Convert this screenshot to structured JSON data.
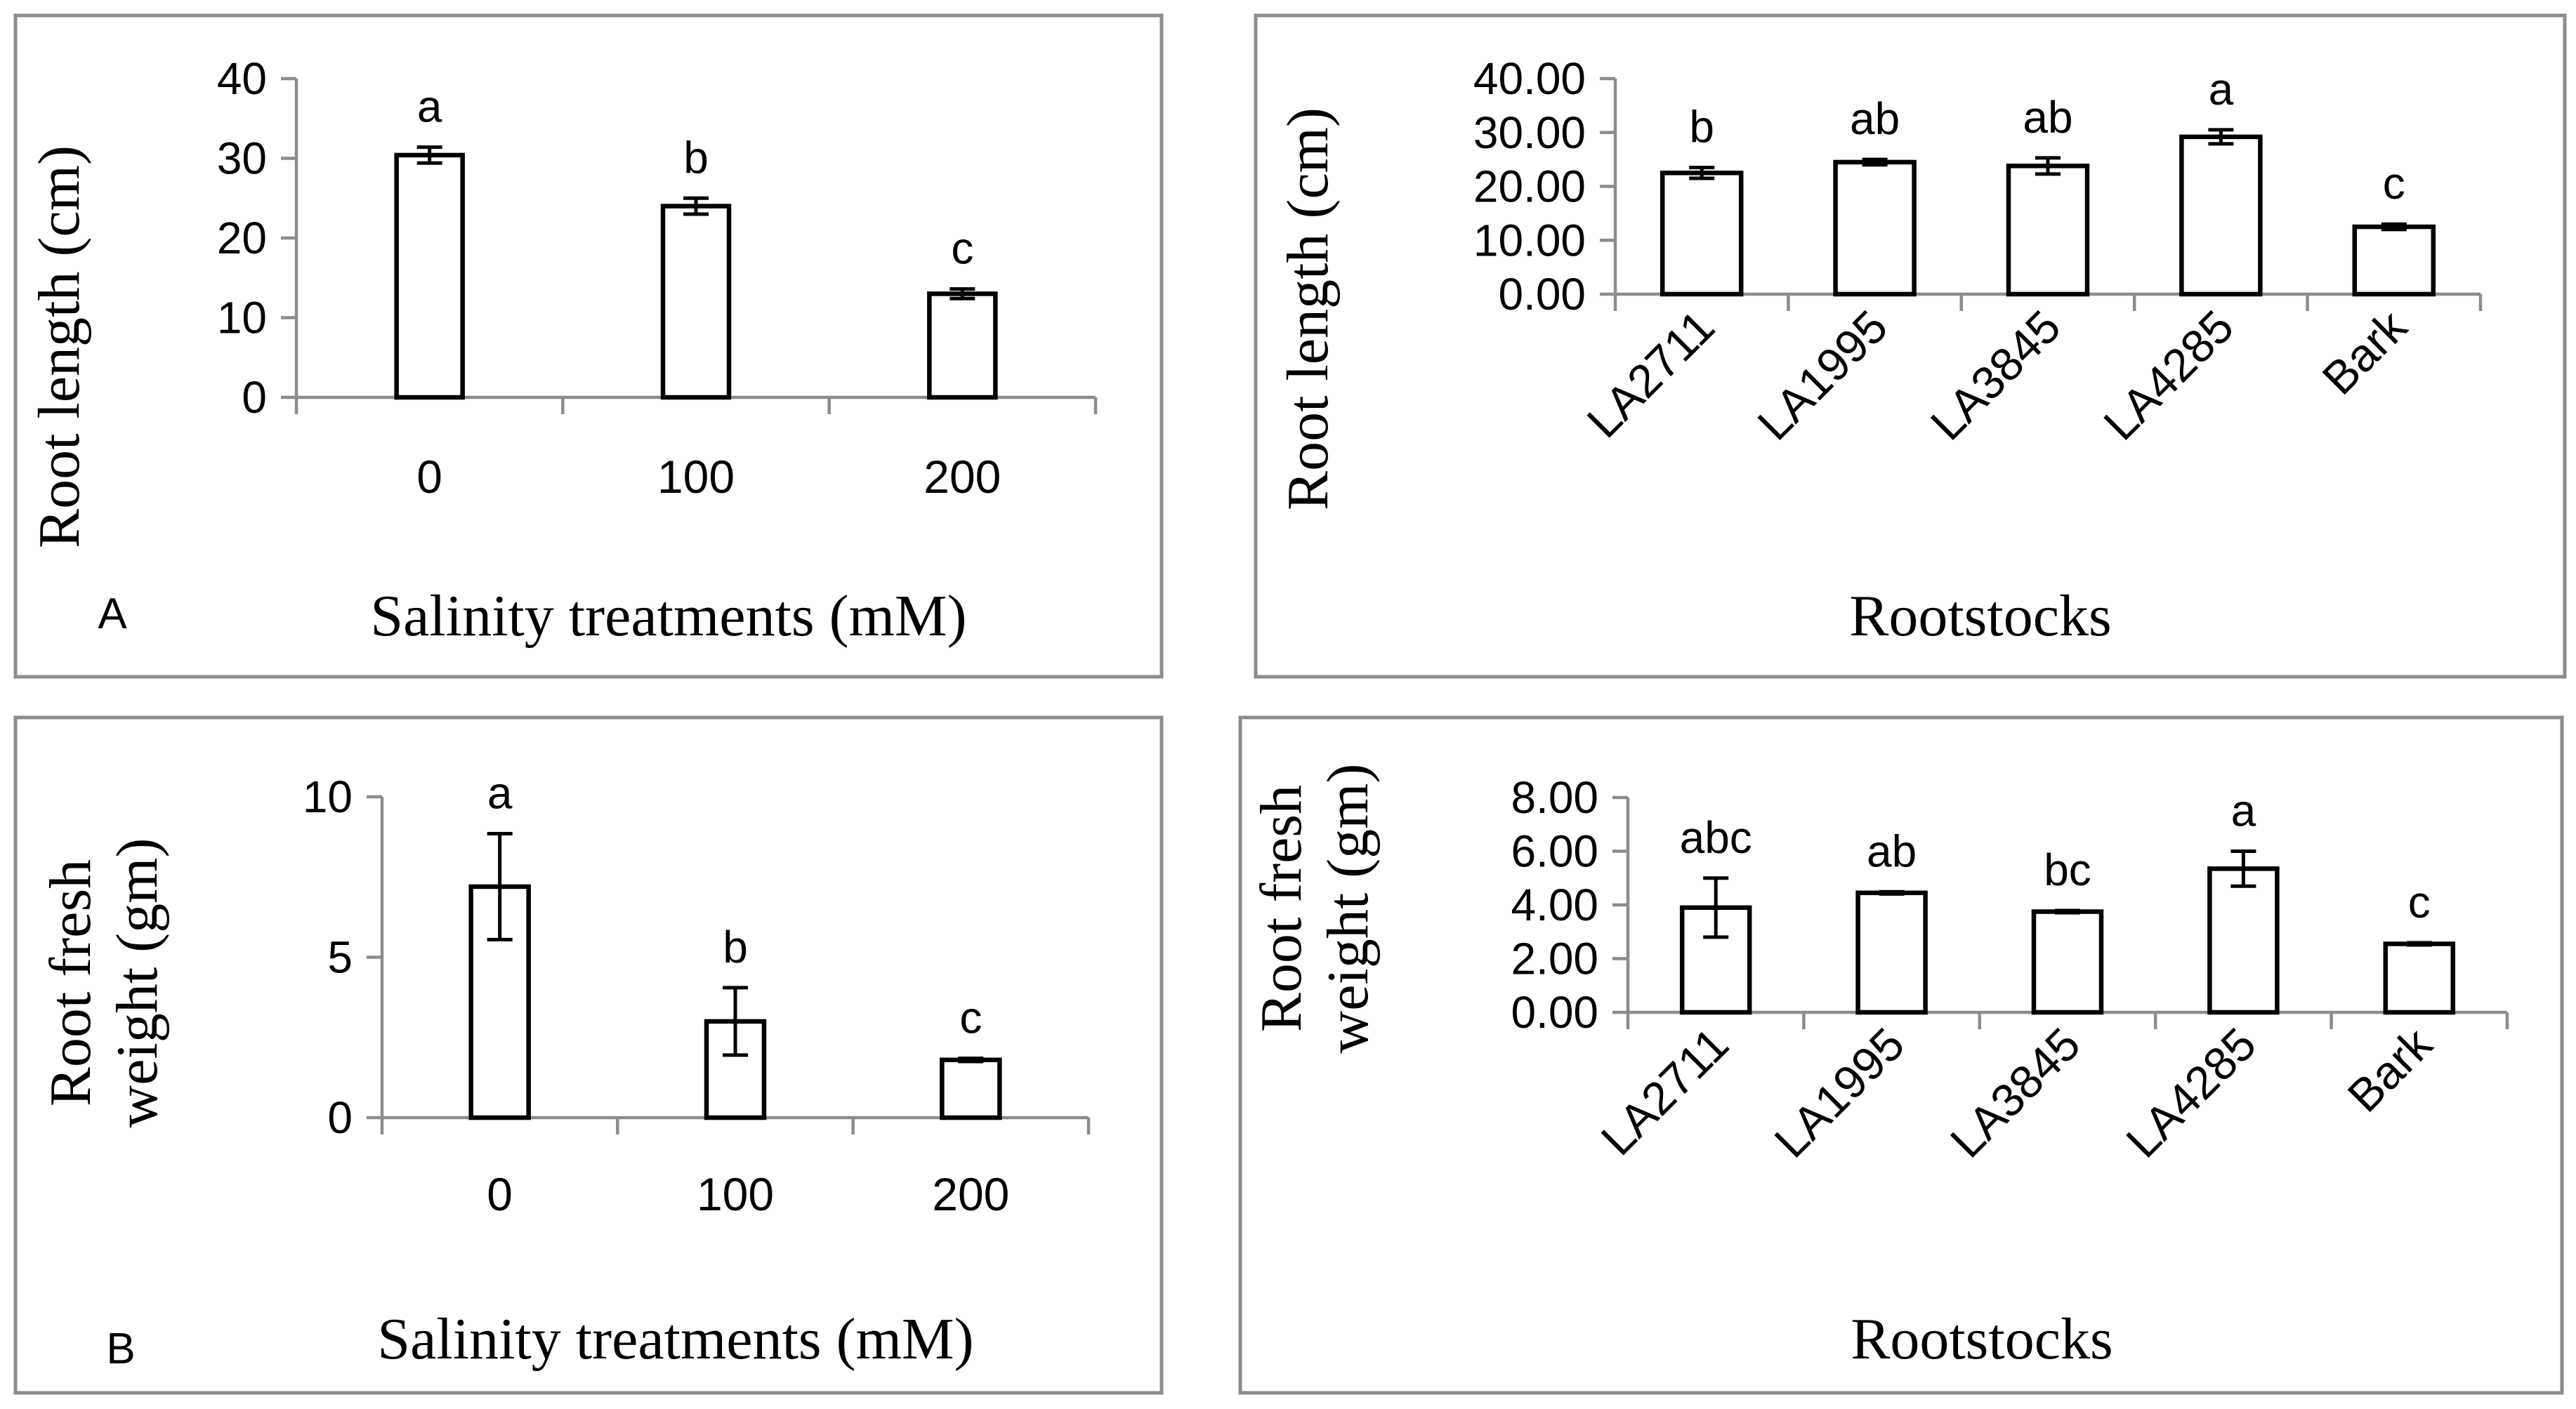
{
  "chart_data": [
    {
      "type": "bar",
      "panel_letter": "A",
      "categories": [
        "0",
        "100",
        "200"
      ],
      "values": [
        30.4,
        24.0,
        13.0
      ],
      "errors": [
        1.0,
        1.0,
        0.6
      ],
      "significance_letters": [
        "a",
        "b",
        "c"
      ],
      "yticks": [
        "0",
        "10",
        "20",
        "30",
        "40"
      ],
      "ylim": [
        0,
        40
      ],
      "xlabel": "Salinity treatments (mM)",
      "ylabel": "Root length (cm)"
    },
    {
      "type": "bar",
      "panel_letter": "",
      "categories": [
        "LA2711",
        "LA1995",
        "LA3845",
        "LA4285",
        "Bark"
      ],
      "values": [
        22.5,
        24.5,
        23.8,
        29.2,
        12.5
      ],
      "errors": [
        1.0,
        0.5,
        1.5,
        1.3,
        0.5
      ],
      "significance_letters": [
        "b",
        "ab",
        "ab",
        "a",
        "c"
      ],
      "yticks": [
        "0.00",
        "10.00",
        "20.00",
        "30.00",
        "40.00"
      ],
      "ylim": [
        0,
        40
      ],
      "xlabel": "Rootstocks",
      "ylabel": "Root length (cm)"
    },
    {
      "type": "bar",
      "panel_letter": "B",
      "categories": [
        "0",
        "100",
        "200"
      ],
      "values": [
        7.2,
        3.0,
        1.8
      ],
      "errors": [
        1.65,
        1.05,
        0.05
      ],
      "significance_letters": [
        "a",
        "b",
        "c"
      ],
      "yticks": [
        "0",
        "5",
        "10"
      ],
      "ylim": [
        0,
        10
      ],
      "xlabel": "Salinity treatments (mM)",
      "ylabel": [
        "Root fresh",
        "weight  (gm)"
      ]
    },
    {
      "type": "bar",
      "panel_letter": "",
      "categories": [
        "LA2711",
        "LA1995",
        "LA3845",
        "LA4285",
        "Bark"
      ],
      "values": [
        3.9,
        4.45,
        3.75,
        5.35,
        2.55
      ],
      "errors": [
        1.1,
        0.04,
        0.04,
        0.65,
        0.04
      ],
      "significance_letters": [
        "abc",
        "ab",
        "bc",
        "a",
        "c"
      ],
      "yticks": [
        "0.00",
        "2.00",
        "4.00",
        "6.00",
        "8.00"
      ],
      "ylim": [
        0,
        8
      ],
      "xlabel": "Rootstocks",
      "ylabel": [
        "Root fresh",
        "weight (gm)"
      ]
    }
  ]
}
